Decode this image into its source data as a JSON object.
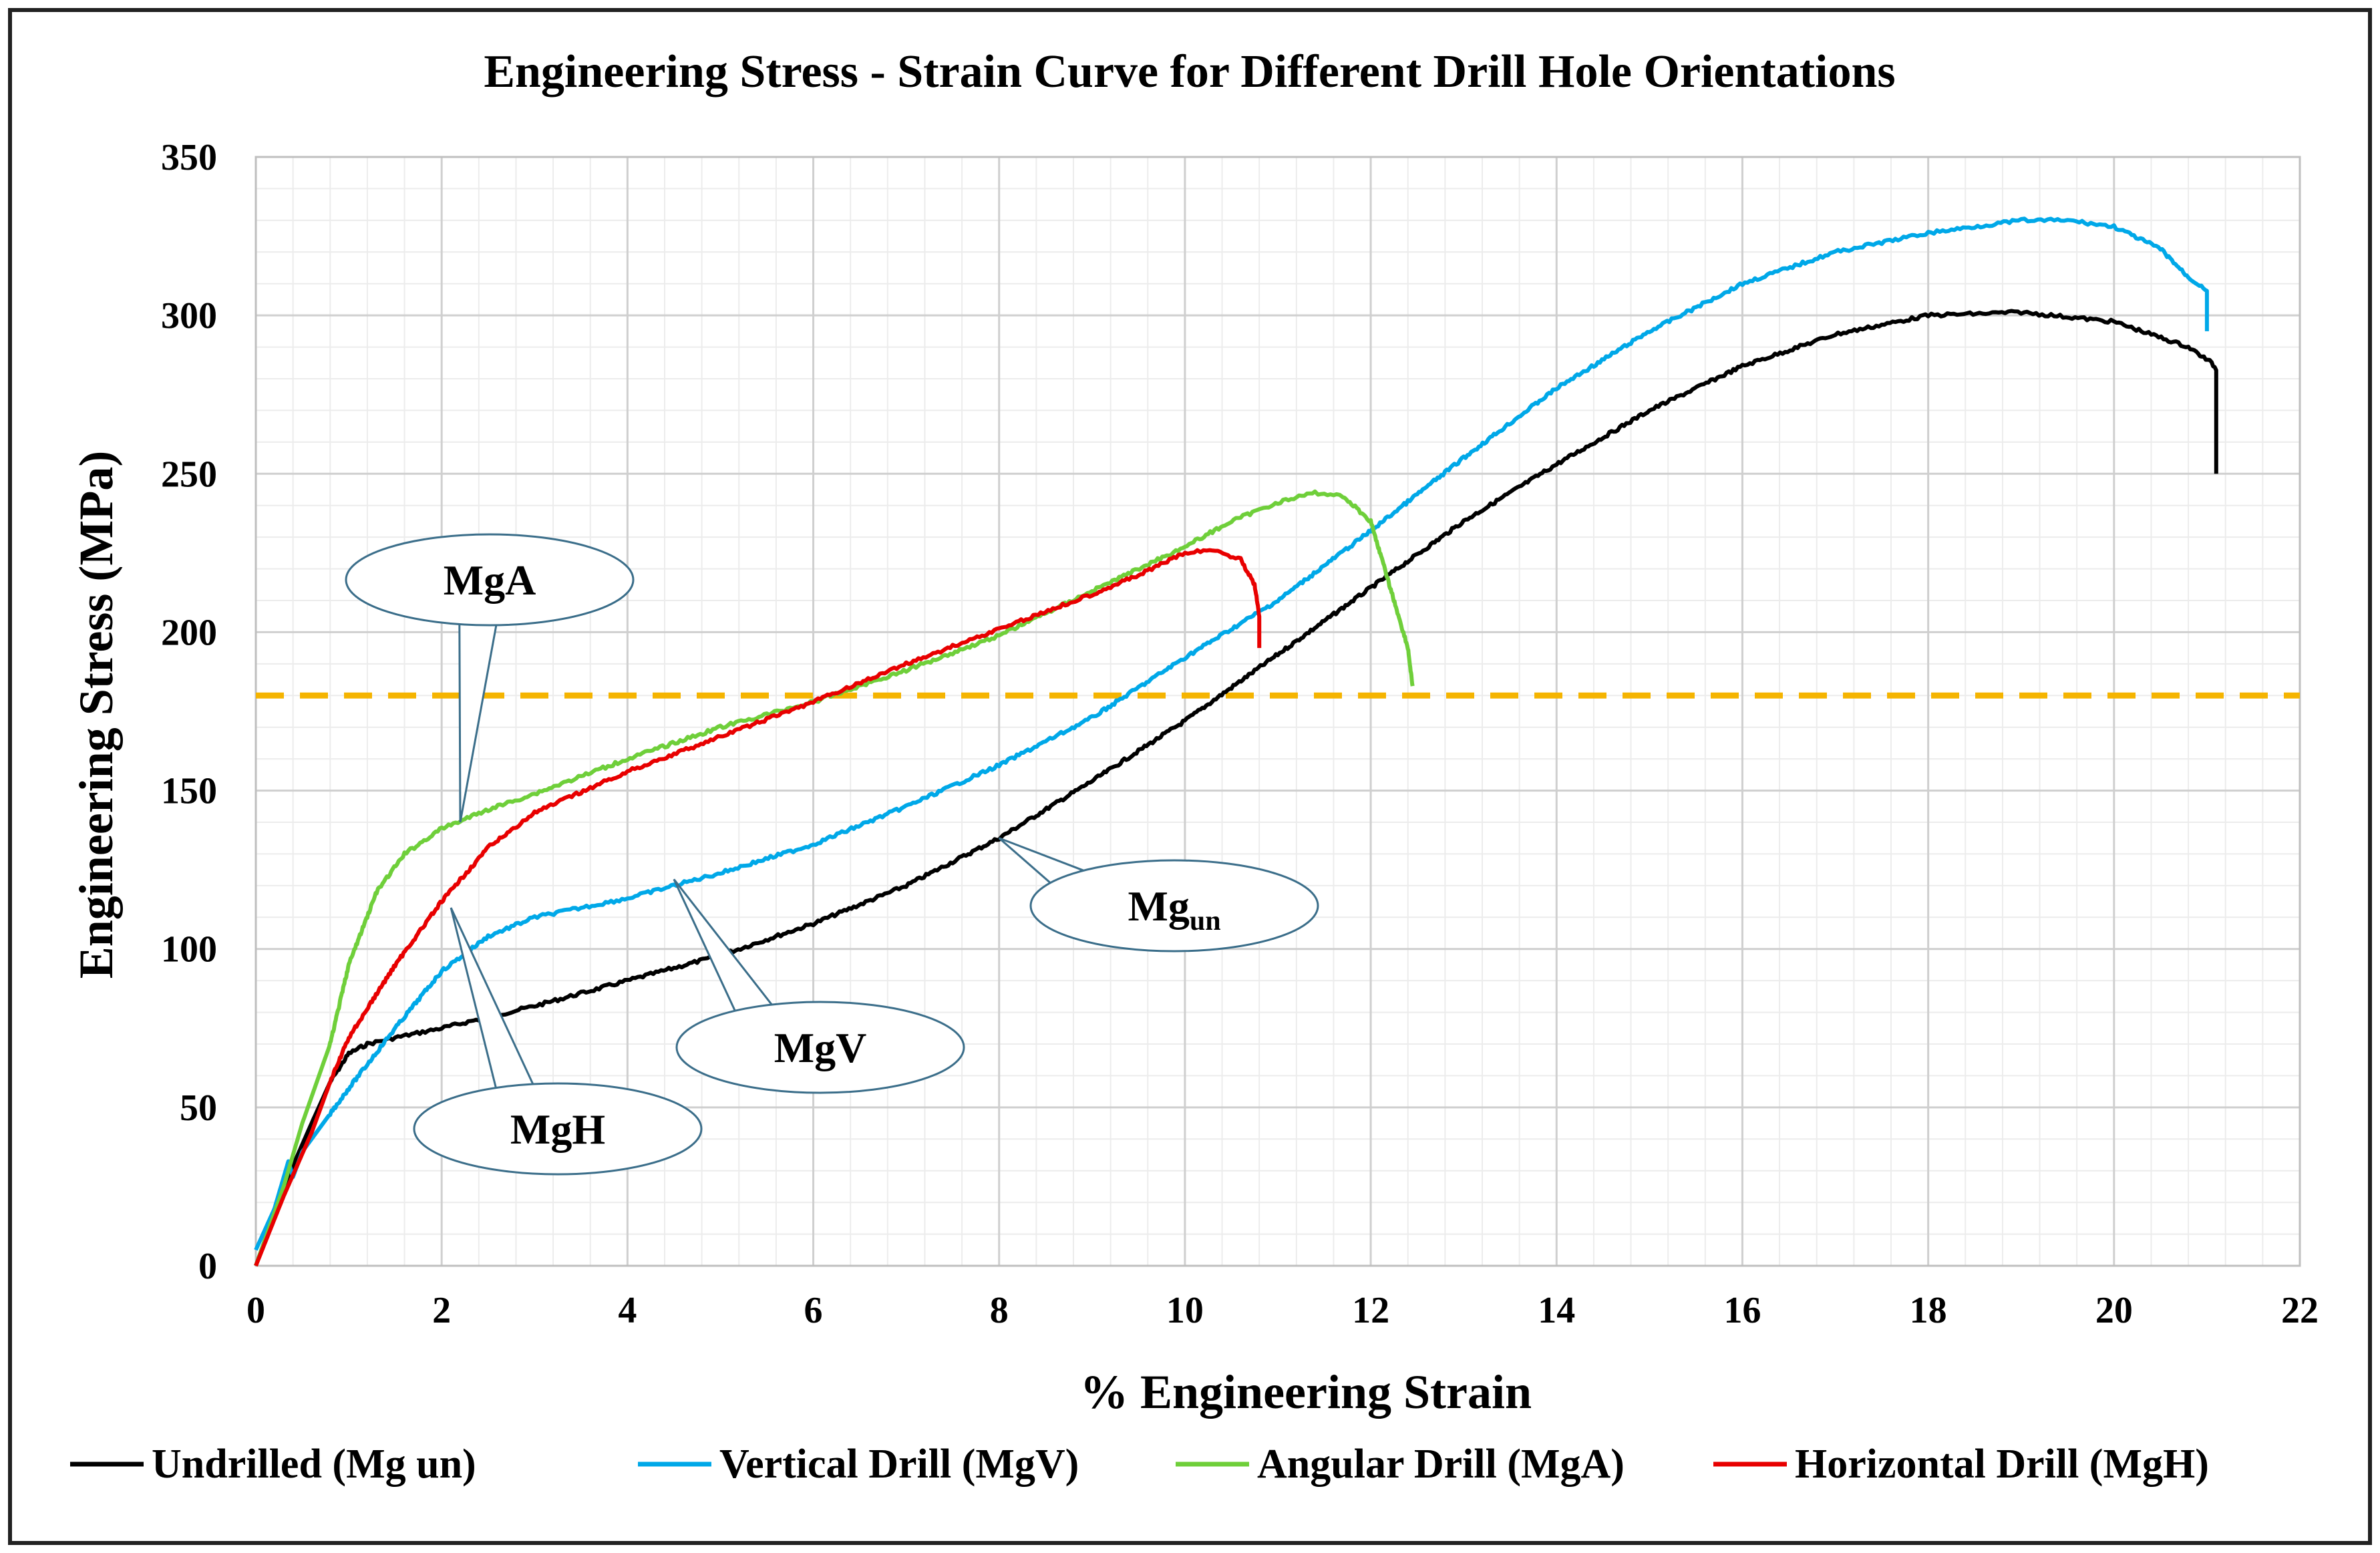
{
  "chart_data": {
    "type": "line",
    "title": "Engineering Stress - Strain Curve for Different Drill Hole Orientations",
    "xlabel": "% Engineering Strain",
    "ylabel": "Engineering Stress (MPa)",
    "xlim": [
      0,
      22
    ],
    "ylim": [
      0,
      350
    ],
    "x_ticks": [
      "0",
      "2",
      "4",
      "6",
      "8",
      "10",
      "12",
      "14",
      "16",
      "18",
      "20",
      "22"
    ],
    "y_ticks": [
      "0",
      "50",
      "100",
      "150",
      "200",
      "250",
      "300",
      "350"
    ],
    "x_tick_values": [
      0,
      2,
      4,
      6,
      8,
      10,
      12,
      14,
      16,
      18,
      20,
      22
    ],
    "y_tick_values": [
      0,
      50,
      100,
      150,
      200,
      250,
      300,
      350
    ],
    "minor_x_step": 0.4,
    "minor_y_step": 10,
    "grid": true,
    "legend_position": "bottom",
    "reference_line": {
      "y": 180,
      "color": "#F5B400",
      "style": "dashed"
    },
    "series": [
      {
        "name": "Undrilled (Mg un)",
        "color": "#000000",
        "x": [
          0,
          0.3,
          0.6,
          0.8,
          1.0,
          1.2,
          1.5,
          2.0,
          3.0,
          4.0,
          5.0,
          6.0,
          7.0,
          8.0,
          9.0,
          10.0,
          11.0,
          12.0,
          13.0,
          14.0,
          15.0,
          16.0,
          17.0,
          18.0,
          19.0,
          20.0,
          20.8,
          21.05,
          21.1,
          21.1
        ],
        "y": [
          0,
          25,
          45,
          58,
          67,
          70,
          72,
          75,
          82,
          90,
          98,
          108,
          120,
          135,
          153,
          172,
          193,
          214,
          235,
          253,
          270,
          284,
          294,
          300,
          301,
          298,
          290,
          285,
          283,
          250
        ]
      },
      {
        "name": "Vertical Drill (MgV)",
        "color": "#00A8E8",
        "x": [
          0,
          0.2,
          0.35,
          0.4,
          0.5,
          0.8,
          1.0,
          1.5,
          2.0,
          2.5,
          3.0,
          4.0,
          5.0,
          6.0,
          7.0,
          8.0,
          9.0,
          10.0,
          11.0,
          12.0,
          13.0,
          14.0,
          15.0,
          16.0,
          17.0,
          18.0,
          19.0,
          19.5,
          20.0,
          20.5,
          20.8,
          21.0,
          21.0
        ],
        "y": [
          5,
          18,
          33,
          28,
          36,
          48,
          56,
          75,
          93,
          104,
          110,
          116,
          124,
          133,
          145,
          158,
          173,
          192,
          210,
          232,
          255,
          277,
          295,
          310,
          320,
          326,
          330,
          330,
          328,
          321,
          312,
          308,
          295
        ]
      },
      {
        "name": "Angular Drill (MgA)",
        "color": "#6FCF3A",
        "x": [
          0,
          0.3,
          0.5,
          0.8,
          1.0,
          1.3,
          1.6,
          2.0,
          2.5,
          3.0,
          4.0,
          5.0,
          6.0,
          7.0,
          8.0,
          9.0,
          10.0,
          10.5,
          11.0,
          11.4,
          11.7,
          12.0,
          12.2,
          12.4,
          12.45
        ],
        "y": [
          0,
          25,
          45,
          70,
          95,
          118,
          130,
          138,
          144,
          149,
          160,
          170,
          178,
          188,
          199,
          213,
          227,
          235,
          241,
          244,
          243,
          235,
          215,
          195,
          183
        ]
      },
      {
        "name": "Horizontal Drill (MgH)",
        "color": "#E80000",
        "x": [
          0,
          0.3,
          0.6,
          0.8,
          1.0,
          1.5,
          2.0,
          2.5,
          3.0,
          4.0,
          5.0,
          6.0,
          7.0,
          8.0,
          9.0,
          9.5,
          10.0,
          10.3,
          10.6,
          10.75,
          10.8,
          10.8
        ],
        "y": [
          0,
          22,
          42,
          58,
          72,
          95,
          115,
          132,
          143,
          156,
          167,
          178,
          190,
          201,
          212,
          218,
          225,
          226,
          223,
          215,
          205,
          195
        ]
      }
    ],
    "annotations": [
      {
        "label": "MgA",
        "sub": "",
        "point_x": 2.2,
        "point_y": 140
      },
      {
        "label": "MgH",
        "sub": "",
        "point_x": 2.1,
        "point_y": 113
      },
      {
        "label": "MgV",
        "sub": "",
        "point_x": 4.5,
        "point_y": 122
      },
      {
        "label": "Mg",
        "sub": "un",
        "point_x": 8.0,
        "point_y": 135
      }
    ]
  }
}
